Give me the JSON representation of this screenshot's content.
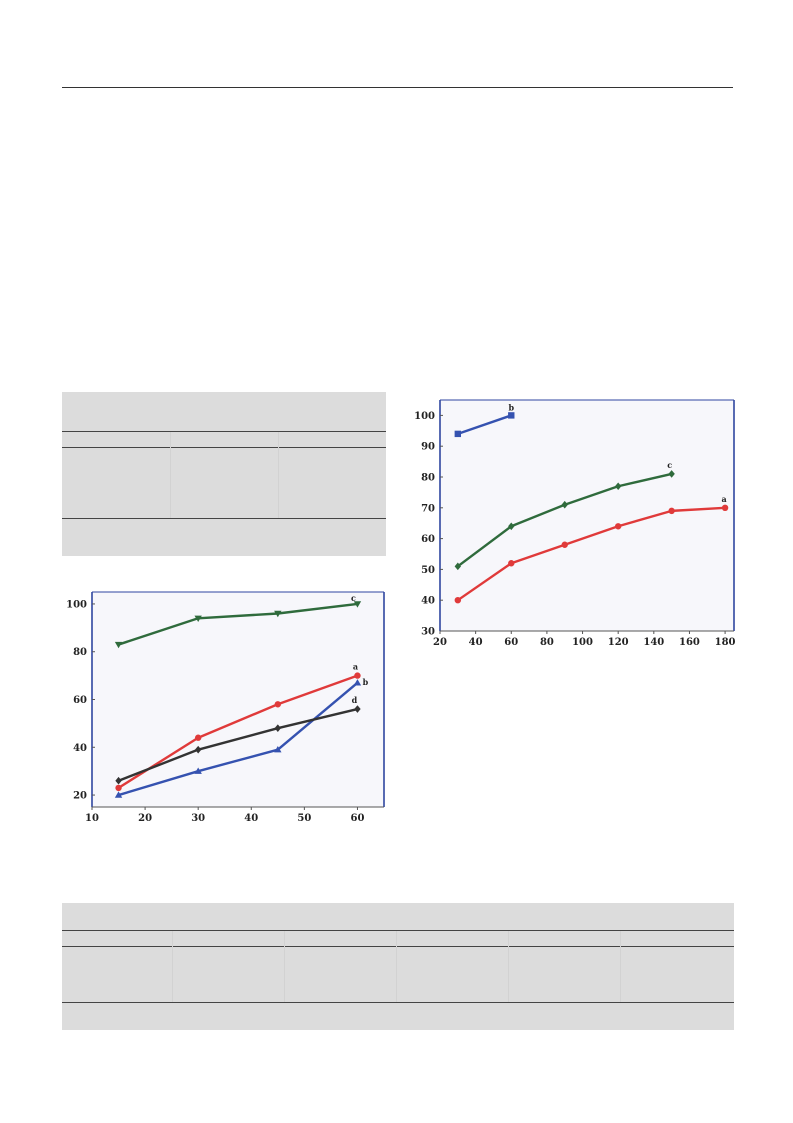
{
  "page": {
    "background": "#ffffff",
    "panel_color": "#dcdcdc",
    "plot_background": "#f7f7fb",
    "frame_color": "#2f46a0"
  },
  "chart_data": [
    {
      "type": "line",
      "x": [
        15,
        30,
        45,
        60
      ],
      "xlim": [
        10,
        65
      ],
      "ylim": [
        15,
        105
      ],
      "xticks": [
        10,
        20,
        30,
        40,
        50,
        60
      ],
      "yticks": [
        20,
        40,
        60,
        80,
        100
      ],
      "grid": false,
      "xlabel": "",
      "ylabel": "",
      "series": [
        {
          "id": "c",
          "label": "c",
          "color": "#2f6b3c",
          "marker": "triangle-down",
          "values": [
            83,
            94,
            96,
            100
          ]
        },
        {
          "id": "a",
          "label": "a",
          "color": "#e03a3a",
          "marker": "circle",
          "values": [
            23,
            44,
            58,
            70
          ]
        },
        {
          "id": "b",
          "label": "b",
          "color": "#3552b0",
          "marker": "triangle-up",
          "values": [
            20,
            30,
            39,
            67
          ]
        },
        {
          "id": "d",
          "label": "d",
          "color": "#333333",
          "marker": "diamond",
          "values": [
            26,
            39,
            48,
            56
          ]
        }
      ]
    },
    {
      "type": "line",
      "xlim": [
        20,
        185
      ],
      "ylim": [
        30,
        105
      ],
      "xticks": [
        20,
        40,
        60,
        80,
        100,
        120,
        140,
        160,
        180
      ],
      "yticks": [
        30,
        40,
        50,
        60,
        70,
        80,
        90,
        100
      ],
      "grid": false,
      "xlabel": "",
      "ylabel": "",
      "series": [
        {
          "id": "b",
          "label": "b",
          "color": "#3552b0",
          "marker": "square",
          "x": [
            30,
            60
          ],
          "values": [
            94,
            100
          ]
        },
        {
          "id": "c",
          "label": "c",
          "color": "#2f6b3c",
          "marker": "diamond",
          "x": [
            30,
            60,
            90,
            120,
            150
          ],
          "values": [
            51,
            64,
            71,
            77,
            81
          ]
        },
        {
          "id": "a",
          "label": "a",
          "color": "#e03a3a",
          "marker": "circle",
          "x": [
            30,
            60,
            90,
            120,
            150,
            180
          ],
          "values": [
            40,
            52,
            58,
            64,
            69,
            70
          ]
        }
      ]
    }
  ]
}
